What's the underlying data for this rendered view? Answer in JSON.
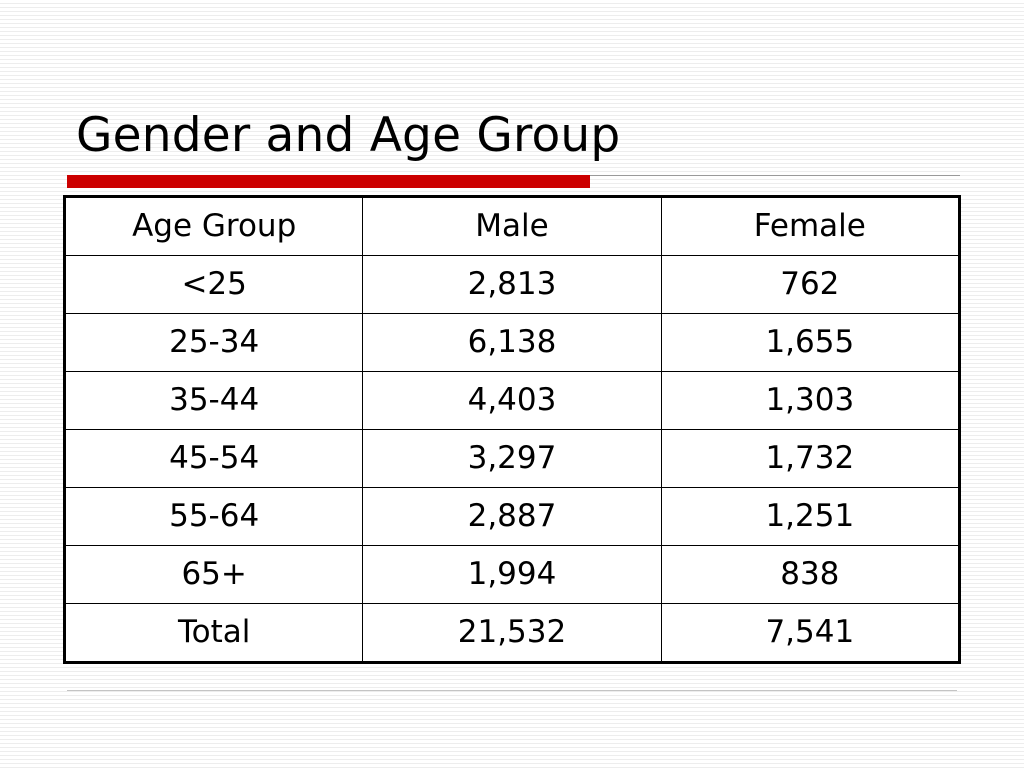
{
  "slide": {
    "title": "Gender and Age Group"
  },
  "table": {
    "headers": [
      "Age Group",
      "Male",
      "Female"
    ],
    "rows": [
      [
        "<25",
        "2,813",
        "762"
      ],
      [
        "25-34",
        "6,138",
        "1,655"
      ],
      [
        "35-44",
        "4,403",
        "1,303"
      ],
      [
        "45-54",
        "3,297",
        "1,732"
      ],
      [
        "55-64",
        "2,887",
        "1,251"
      ],
      [
        "65+",
        "1,994",
        "838"
      ],
      [
        "Total",
        "21,532",
        "7,541"
      ]
    ]
  },
  "colors": {
    "accent": "#cc0000",
    "text": "#000000",
    "background": "#ffffff"
  }
}
